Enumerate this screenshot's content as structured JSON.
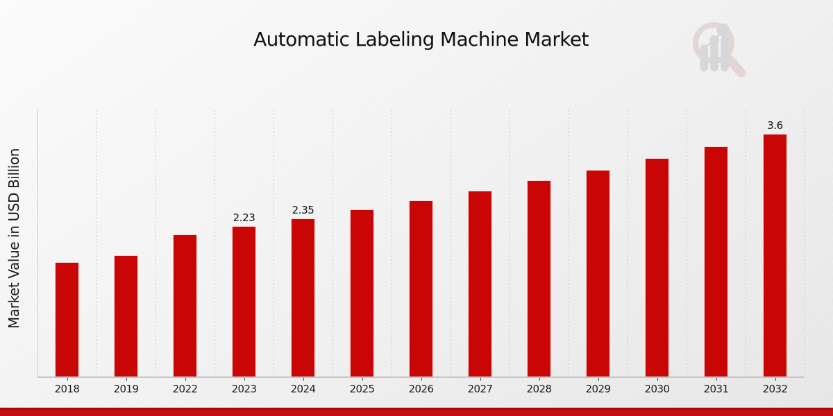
{
  "chart_data": {
    "type": "bar",
    "title": "Automatic Labeling Machine Market",
    "ylabel": "Market Value in USD Billion",
    "xlabel": "",
    "categories": [
      "2018",
      "2019",
      "2022",
      "2023",
      "2024",
      "2025",
      "2026",
      "2027",
      "2028",
      "2029",
      "2030",
      "2031",
      "2032"
    ],
    "values": [
      1.7,
      1.8,
      2.11,
      2.23,
      2.35,
      2.48,
      2.61,
      2.76,
      2.91,
      3.07,
      3.24,
      3.41,
      3.6
    ],
    "data_labels": [
      null,
      null,
      null,
      "2.23",
      "2.35",
      null,
      null,
      null,
      null,
      null,
      null,
      null,
      "3.6"
    ],
    "ylim": [
      0,
      3.95
    ],
    "grid": "vertical-dashed",
    "legend": "none",
    "bar_color": "#c80606",
    "banner_color": "#c40d0d",
    "background_color": "#efefef"
  }
}
